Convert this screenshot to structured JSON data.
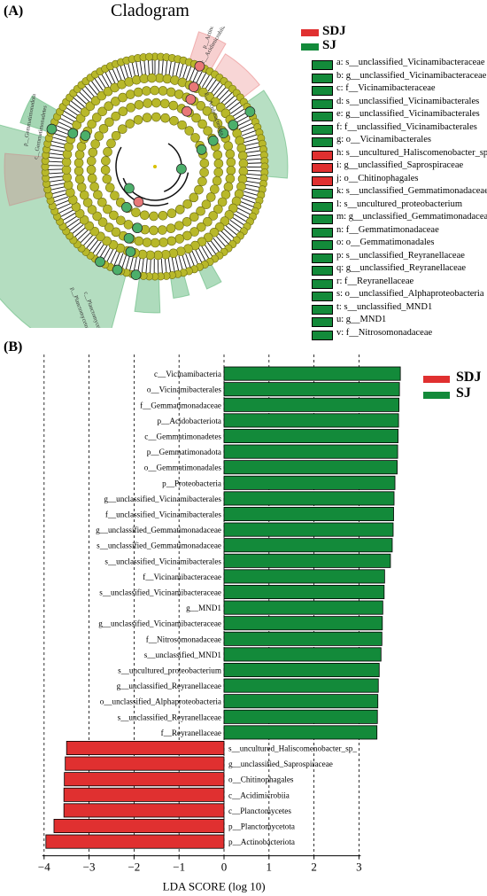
{
  "panel_a": {
    "label": "(A)",
    "title": "Cladogram",
    "legend_groups": [
      {
        "name": "SDJ",
        "color": "#e03030"
      },
      {
        "name": "SJ",
        "color": "#138a3a"
      }
    ],
    "legend_items": [
      {
        "text": "a: s__unclassified_Vicinamibacteraceae",
        "group": "SJ"
      },
      {
        "text": "b: g__unclassified_Vicinamibacteraceae",
        "group": "SJ"
      },
      {
        "text": "c: f__Vicinamibacteraceae",
        "group": "SJ"
      },
      {
        "text": "d: s__unclassified_Vicinamibacterales",
        "group": "SJ"
      },
      {
        "text": "e: g__unclassified_Vicinamibacterales",
        "group": "SJ"
      },
      {
        "text": "f: f__unclassified_Vicinamibacterales",
        "group": "SJ"
      },
      {
        "text": "g: o__Vicinamibacterales",
        "group": "SJ"
      },
      {
        "text": "h: s__uncultured_Haliscomenobacter_sp_",
        "group": "SDJ"
      },
      {
        "text": "i: g__unclassified_Saprospiraceae",
        "group": "SDJ"
      },
      {
        "text": "j: o__Chitinophagales",
        "group": "SDJ"
      },
      {
        "text": "k: s__unclassified_Gemmatimonadaceae",
        "group": "SJ"
      },
      {
        "text": "l: s__uncultured_proteobacterium",
        "group": "SJ"
      },
      {
        "text": "m: g__unclassified_Gemmatimonadaceae",
        "group": "SJ"
      },
      {
        "text": "n: f__Gemmatimonadaceae",
        "group": "SJ"
      },
      {
        "text": "o: o__Gemmatimonadales",
        "group": "SJ"
      },
      {
        "text": "p: s__unclassified_Reyranellaceae",
        "group": "SJ"
      },
      {
        "text": "q: g__unclassified_Reyranellaceae",
        "group": "SJ"
      },
      {
        "text": "r: f__Reyranellaceae",
        "group": "SJ"
      },
      {
        "text": "s: o__unclassified_Alphaproteobacteria",
        "group": "SJ"
      },
      {
        "text": "t: s__unclassified_MND1",
        "group": "SJ"
      },
      {
        "text": "u: g__MND1",
        "group": "SJ"
      },
      {
        "text": "v: f__Nitrosomonadaceae",
        "group": "SJ"
      }
    ],
    "sector_labels": [
      {
        "text": "p__Actinobacteriota",
        "group": "SDJ"
      },
      {
        "text": "c__Acidimicrobiia",
        "group": "SDJ"
      },
      {
        "text": "p__Acidobacteriota",
        "group": "SJ"
      },
      {
        "text": "p__Gemmatimonadota",
        "group": "SJ"
      },
      {
        "text": "c__Gemmatimonadetes",
        "group": "SJ"
      },
      {
        "text": "p__Planctomycetota",
        "group": "SDJ"
      },
      {
        "text": "c__Planctomycetes",
        "group": "SDJ"
      },
      {
        "text": "p__Proteobacteria",
        "group": "SJ"
      }
    ]
  },
  "panel_b": {
    "label": "(B)",
    "legend": [
      {
        "name": "SDJ",
        "color": "#e03030"
      },
      {
        "name": "SJ",
        "color": "#138a3a"
      }
    ]
  },
  "chart_data": {
    "type": "bar",
    "orientation": "horizontal",
    "xlabel": "LDA SCORE (log 10)",
    "ylabel": "",
    "xlim": [
      -4.2,
      4.0
    ],
    "xticks": [
      -4,
      -3,
      -2,
      -1,
      0,
      1,
      2,
      3
    ],
    "grid": "vertical dashed",
    "legend_position": "top-right",
    "series": [
      {
        "name": "SDJ",
        "color": "#e03030"
      },
      {
        "name": "SJ",
        "color": "#138a3a"
      }
    ],
    "bars": [
      {
        "label": "c__Vicinamibacteria",
        "value": 3.92,
        "group": "SJ"
      },
      {
        "label": "o__Vicinamibacterales",
        "value": 3.9,
        "group": "SJ"
      },
      {
        "label": "f__Gemmatimonadaceae",
        "value": 3.89,
        "group": "SJ"
      },
      {
        "label": "p__Acidobacteriota",
        "value": 3.88,
        "group": "SJ"
      },
      {
        "label": "c__Gemmatimonadetes",
        "value": 3.87,
        "group": "SJ"
      },
      {
        "label": "p__Gemmatimonadota",
        "value": 3.86,
        "group": "SJ"
      },
      {
        "label": "o__Gemmatimonadales",
        "value": 3.85,
        "group": "SJ"
      },
      {
        "label": "p__Proteobacteria",
        "value": 3.8,
        "group": "SJ"
      },
      {
        "label": "g__unclassified_Vicinamibacterales",
        "value": 3.78,
        "group": "SJ"
      },
      {
        "label": "f__unclassified_Vicinamibacterales",
        "value": 3.77,
        "group": "SJ"
      },
      {
        "label": "g__unclassified_Gemmatimonadaceae",
        "value": 3.76,
        "group": "SJ"
      },
      {
        "label": "s__unclassified_Gemmatimonadaceae",
        "value": 3.74,
        "group": "SJ"
      },
      {
        "label": "s__unclassified_Vicinamibacterales",
        "value": 3.7,
        "group": "SJ"
      },
      {
        "label": "f__Vicinamibacteraceae",
        "value": 3.57,
        "group": "SJ"
      },
      {
        "label": "s__unclassified_Vicinamibacteraceae",
        "value": 3.56,
        "group": "SJ"
      },
      {
        "label": "g__MND1",
        "value": 3.53,
        "group": "SJ"
      },
      {
        "label": "g__unclassified_Vicinamibacteraceae",
        "value": 3.52,
        "group": "SJ"
      },
      {
        "label": "f__Nitrosomonadaceae",
        "value": 3.51,
        "group": "SJ"
      },
      {
        "label": "s__unclassified_MND1",
        "value": 3.49,
        "group": "SJ"
      },
      {
        "label": "s__uncultured_proteobacterium",
        "value": 3.45,
        "group": "SJ"
      },
      {
        "label": "g__unclassified_Reyranellaceae",
        "value": 3.43,
        "group": "SJ"
      },
      {
        "label": "o__unclassified_Alphaproteobacteria",
        "value": 3.42,
        "group": "SJ"
      },
      {
        "label": "s__unclassified_Reyranellaceae",
        "value": 3.41,
        "group": "SJ"
      },
      {
        "label": "f__Reyranellaceae",
        "value": 3.4,
        "group": "SJ"
      },
      {
        "label": "s__uncultured_Haliscomenobacter_sp_",
        "value": -3.5,
        "group": "SDJ"
      },
      {
        "label": "g__unclassified_Saprospiraceae",
        "value": -3.53,
        "group": "SDJ"
      },
      {
        "label": "o__Chitinophagales",
        "value": -3.55,
        "group": "SDJ"
      },
      {
        "label": "c__Acidimicrobiia",
        "value": -3.56,
        "group": "SDJ"
      },
      {
        "label": "c__Planctomycetes",
        "value": -3.56,
        "group": "SDJ"
      },
      {
        "label": "p__Planctomycetota",
        "value": -3.78,
        "group": "SDJ"
      },
      {
        "label": "p__Actinobacteriota",
        "value": -3.96,
        "group": "SDJ"
      }
    ]
  }
}
